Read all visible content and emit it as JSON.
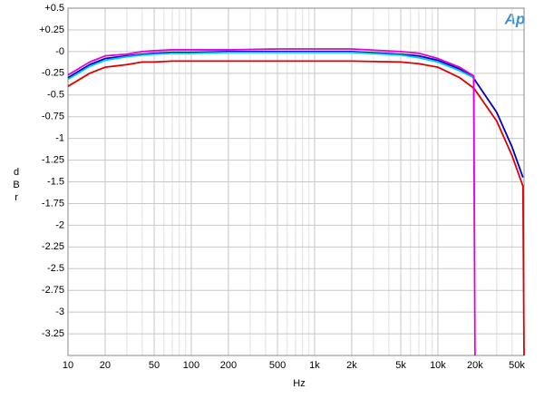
{
  "chart_data": {
    "type": "line",
    "logo": "Ap",
    "y_label": "dBr",
    "x_label": "Hz",
    "x_log": true,
    "grid": true,
    "minor_grid": true,
    "xlim": [
      10,
      50000
    ],
    "xticks": [
      10,
      20,
      50,
      100,
      200,
      500,
      {
        "value": 1000,
        "label": "1k"
      },
      {
        "value": 2000,
        "label": "2k"
      },
      {
        "value": 5000,
        "label": "5k"
      },
      {
        "value": 10000,
        "label": "10k"
      },
      {
        "value": 20000,
        "label": "20k"
      },
      {
        "value": 50000,
        "label": "50k"
      }
    ],
    "ylim": [
      -3.5,
      0.5
    ],
    "yticks": [
      {
        "value": 0.5,
        "label": "+0.5"
      },
      {
        "value": 0.25,
        "label": "+0.25"
      },
      {
        "value": 0,
        "label": "-0"
      },
      -0.25,
      -0.5,
      -0.75,
      -1,
      -1.25,
      -1.5,
      -1.75,
      -2,
      -2.25,
      -2.5,
      -2.75,
      -3,
      -3.25
    ],
    "x": [
      10,
      15,
      20,
      30,
      40,
      50,
      70,
      100,
      200,
      500,
      1000,
      2000,
      5000,
      7000,
      10000,
      15000,
      19500,
      20000,
      30000,
      40000,
      49000,
      50000
    ],
    "series": [
      {
        "color": "#e00000",
        "values": [
          -0.4,
          -0.25,
          -0.18,
          -0.15,
          -0.12,
          -0.12,
          -0.11,
          -0.11,
          -0.11,
          -0.11,
          -0.11,
          -0.11,
          -0.12,
          -0.14,
          -0.18,
          -0.3,
          -0.42,
          -0.44,
          -0.8,
          -1.2,
          -1.55,
          -3.5
        ]
      },
      {
        "color": "#0000c0",
        "values": [
          -0.3,
          -0.15,
          -0.08,
          -0.05,
          -0.03,
          -0.02,
          -0.01,
          -0.01,
          0,
          0,
          0,
          0,
          -0.03,
          -0.05,
          -0.1,
          -0.2,
          -0.3,
          -0.33,
          -0.7,
          -1.1,
          -1.45,
          null
        ]
      },
      {
        "color": "#00c8e0",
        "values": [
          -0.32,
          -0.17,
          -0.1,
          -0.06,
          -0.04,
          -0.03,
          -0.02,
          -0.02,
          -0.01,
          -0.01,
          -0.01,
          -0.01,
          -0.04,
          -0.07,
          -0.12,
          -0.22,
          -0.3,
          -0.32,
          null,
          null,
          null,
          null
        ]
      },
      {
        "color": "#e000e0",
        "values": [
          -0.27,
          -0.12,
          -0.05,
          -0.03,
          0,
          0.01,
          0.02,
          0.02,
          0.02,
          0.03,
          0.03,
          0.03,
          0,
          -0.02,
          -0.08,
          -0.18,
          -0.28,
          -3.5,
          null,
          null,
          null,
          null
        ]
      }
    ]
  }
}
